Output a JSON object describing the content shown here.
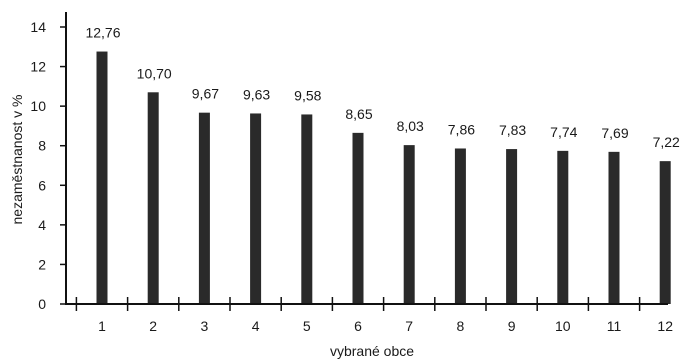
{
  "chart_data": {
    "type": "bar",
    "categories": [
      "1",
      "2",
      "3",
      "4",
      "5",
      "6",
      "7",
      "8",
      "9",
      "10",
      "11",
      "12"
    ],
    "values": [
      12.76,
      10.7,
      9.67,
      9.63,
      9.58,
      8.65,
      8.03,
      7.86,
      7.83,
      7.74,
      7.69,
      7.22
    ],
    "value_labels": [
      "12,76",
      "10,70",
      "9,67",
      "9,63",
      "9,58",
      "8,65",
      "8,03",
      "7,86",
      "7,83",
      "7,74",
      "7,69",
      "7,22"
    ],
    "xlabel": "vybrané obce",
    "ylabel": "nezaměstnanost v %",
    "ylim": [
      0,
      14
    ],
    "yticks": [
      0,
      2,
      4,
      6,
      8,
      10,
      12,
      14
    ],
    "grid": false,
    "legend": "none",
    "bar_color": "#2a2a2a"
  }
}
